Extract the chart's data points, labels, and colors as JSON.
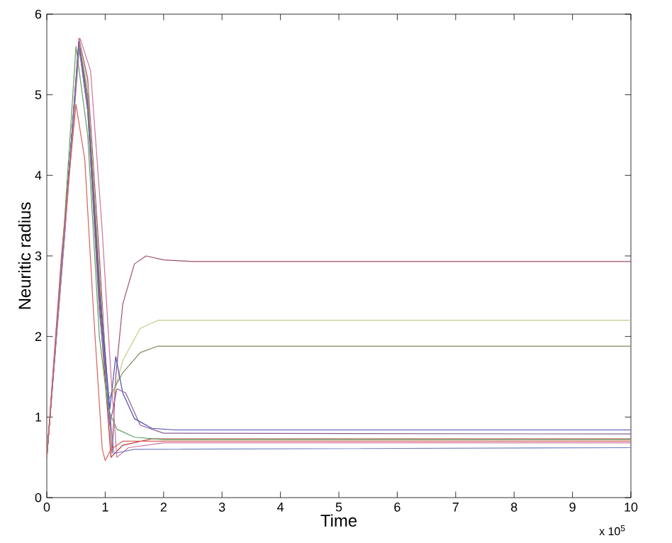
{
  "chart_data": {
    "type": "line",
    "xlabel": "Time",
    "ylabel": "Neuritic radius",
    "xlim": [
      0,
      10
    ],
    "ylim": [
      0,
      6
    ],
    "xticks": [
      0,
      1,
      2,
      3,
      4,
      5,
      6,
      7,
      8,
      9,
      10
    ],
    "yticks": [
      0,
      1,
      2,
      3,
      4,
      5,
      6
    ],
    "grid": false,
    "marker": "none",
    "line_style": "solid",
    "annotations": [
      "x 10$^{5}$"
    ],
    "series": [
      {
        "color": "#9b4f6b",
        "x": [
          0,
          0.3,
          0.55,
          0.7,
          0.9,
          1.05,
          1.12,
          1.18,
          1.3,
          1.5,
          1.7,
          2.0,
          2.5,
          10
        ],
        "values": [
          0.5,
          3.2,
          5.7,
          5.2,
          3.0,
          1.2,
          0.55,
          1.5,
          2.4,
          2.9,
          3.0,
          2.95,
          2.93,
          2.93
        ]
      },
      {
        "color": "#c6c98a",
        "x": [
          0,
          0.3,
          0.55,
          0.7,
          0.9,
          1.05,
          1.15,
          1.3,
          1.6,
          1.9,
          2.5,
          10
        ],
        "values": [
          0.5,
          3.3,
          5.68,
          5.1,
          2.8,
          1.3,
          1.3,
          1.7,
          2.1,
          2.2,
          2.2,
          2.2
        ]
      },
      {
        "color": "#7c8b62",
        "x": [
          0,
          0.3,
          0.55,
          0.7,
          0.9,
          1.05,
          1.15,
          1.3,
          1.6,
          1.9,
          2.5,
          10
        ],
        "values": [
          0.5,
          3.3,
          5.65,
          5.0,
          2.7,
          1.2,
          1.35,
          1.55,
          1.8,
          1.88,
          1.88,
          1.88
        ]
      },
      {
        "color": "#4a4ab8",
        "x": [
          0,
          0.3,
          0.55,
          0.7,
          0.9,
          1.08,
          1.18,
          1.3,
          1.5,
          1.8,
          2.2,
          10
        ],
        "values": [
          0.5,
          3.3,
          5.66,
          4.9,
          2.6,
          1.1,
          1.75,
          1.3,
          0.98,
          0.86,
          0.84,
          0.84
        ]
      },
      {
        "color": "#8a5c96",
        "x": [
          0,
          0.3,
          0.55,
          0.7,
          0.9,
          1.08,
          1.2,
          1.35,
          1.6,
          2.0,
          10
        ],
        "values": [
          0.5,
          3.3,
          5.64,
          4.9,
          2.5,
          0.9,
          1.35,
          1.3,
          0.9,
          0.8,
          0.79
        ]
      },
      {
        "color": "#b83030",
        "x": [
          0,
          0.3,
          0.55,
          0.7,
          0.9,
          1.1,
          1.3,
          1.8,
          10
        ],
        "values": [
          0.5,
          3.3,
          5.62,
          4.8,
          2.4,
          0.5,
          0.65,
          0.73,
          0.73
        ]
      },
      {
        "color": "#5fa05f",
        "x": [
          0,
          0.3,
          0.5,
          0.7,
          0.9,
          1.05,
          1.2,
          1.5,
          2.0,
          10
        ],
        "values": [
          0.5,
          3.4,
          5.6,
          4.5,
          2.0,
          1.1,
          0.85,
          0.75,
          0.72,
          0.72
        ]
      },
      {
        "color": "#d0709a",
        "x": [
          0,
          0.3,
          0.57,
          0.75,
          0.95,
          1.1,
          1.2,
          1.4,
          2.0,
          10
        ],
        "values": [
          0.5,
          3.2,
          5.7,
          5.3,
          3.3,
          1.5,
          0.5,
          0.62,
          0.68,
          0.68
        ]
      },
      {
        "color": "#6f7fc0",
        "x": [
          0,
          0.3,
          0.55,
          0.7,
          0.9,
          1.15,
          1.5,
          10
        ],
        "values": [
          0.5,
          3.3,
          5.6,
          4.8,
          2.3,
          0.55,
          0.6,
          0.62
        ]
      },
      {
        "color": "#d8605a",
        "x": [
          0,
          0.25,
          0.5,
          0.65,
          0.8,
          0.95,
          1.0,
          1.1,
          1.3,
          2.0,
          10
        ],
        "values": [
          0.5,
          3.0,
          4.88,
          4.2,
          2.3,
          0.6,
          0.46,
          0.6,
          0.7,
          0.7,
          0.7
        ]
      }
    ]
  }
}
